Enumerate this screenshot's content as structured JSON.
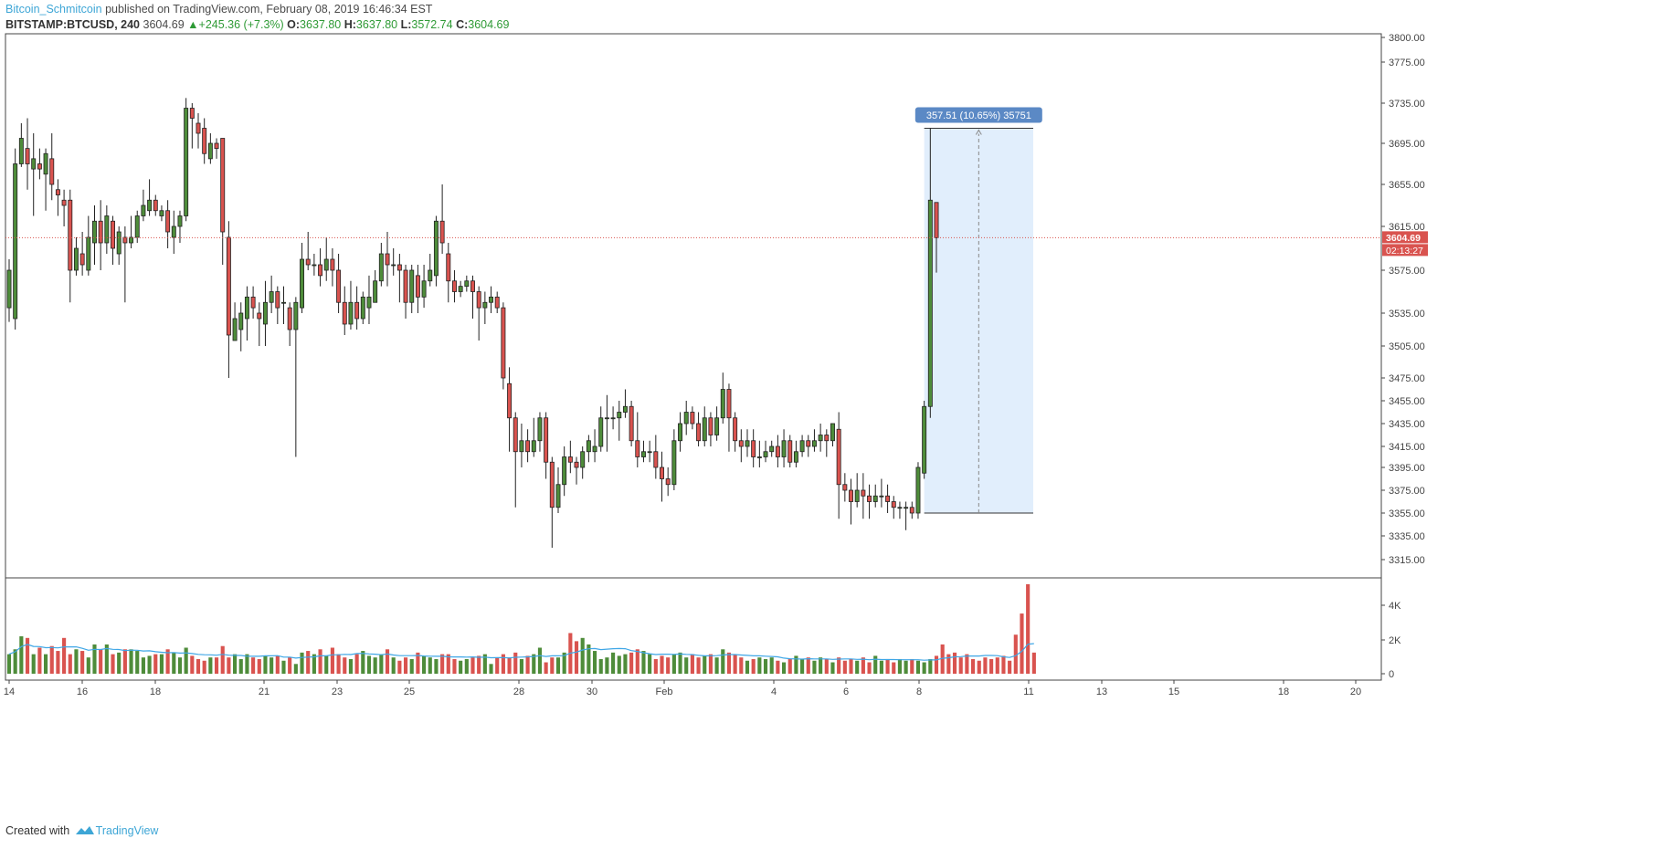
{
  "header": {
    "author": "Bitcoin_Schmitcoin",
    "published": " published on TradingView.com, February 08, 2019 16:46:34 EST",
    "symbol": "BITSTAMP:BTCUSD, 240",
    "last": "3604.69",
    "change": "+245.36 (+7.3%)",
    "o_label": "O:",
    "o_value": "3637.80",
    "h_label": "H:",
    "h_value": "3637.80",
    "l_label": "L:",
    "l_value": "3572.74",
    "c_label": "C:",
    "c_value": "3604.69"
  },
  "footer": {
    "created_with": "Created with",
    "brand": "TradingView"
  },
  "colors": {
    "up": "#4e8c3a",
    "down": "#d9534f",
    "price_line": "#d9534f",
    "measure_fill": "#dcebfb",
    "measure_label_bg": "#5b89c5",
    "volume_ma": "#3ea6e6"
  },
  "chart_data": {
    "type": "candlestick",
    "timeframe": "240",
    "price_axis": {
      "ticks": [
        "3800.00",
        "3775.00",
        "3735.00",
        "3695.00",
        "3655.00",
        "3615.00",
        "3575.00",
        "3535.00",
        "3505.00",
        "3475.00",
        "3455.00",
        "3435.00",
        "3415.00",
        "3395.00",
        "3375.00",
        "3355.00",
        "3335.00",
        "3315.00"
      ],
      "last_price_label": "3604.69",
      "countdown_label": "02:13:27"
    },
    "volume_axis": {
      "ticks": [
        "4K",
        "2K",
        "0"
      ]
    },
    "x_axis": {
      "ticks": [
        "14",
        "16",
        "18",
        "21",
        "23",
        "25",
        "28",
        "30",
        "Feb",
        "4",
        "6",
        "8",
        "11",
        "13",
        "15",
        "18",
        "20"
      ]
    },
    "measure": {
      "label": "357.51 (10.65%) 35751"
    },
    "candles_ohlc": [
      [
        3540,
        3575,
        3527,
        3585
      ],
      [
        3530,
        3675,
        3520,
        3690
      ],
      [
        3675,
        3700,
        3672,
        3715
      ],
      [
        3690,
        3675,
        3650,
        3720
      ],
      [
        3670,
        3680,
        3625,
        3705
      ],
      [
        3675,
        3670,
        3660,
        3690
      ],
      [
        3665,
        3685,
        3630,
        3690
      ],
      [
        3680,
        3655,
        3640,
        3705
      ],
      [
        3650,
        3645,
        3625,
        3660
      ],
      [
        3640,
        3635,
        3615,
        3650
      ],
      [
        3640,
        3575,
        3545,
        3650
      ],
      [
        3575,
        3595,
        3570,
        3605
      ],
      [
        3590,
        3580,
        3570,
        3610
      ],
      [
        3575,
        3605,
        3570,
        3625
      ],
      [
        3600,
        3620,
        3580,
        3635
      ],
      [
        3620,
        3600,
        3575,
        3640
      ],
      [
        3600,
        3625,
        3590,
        3635
      ],
      [
        3620,
        3595,
        3580,
        3625
      ],
      [
        3590,
        3610,
        3580,
        3615
      ],
      [
        3605,
        3600,
        3545,
        3615
      ],
      [
        3600,
        3605,
        3595,
        3625
      ],
      [
        3605,
        3625,
        3600,
        3630
      ],
      [
        3625,
        3635,
        3620,
        3650
      ],
      [
        3630,
        3640,
        3625,
        3660
      ],
      [
        3640,
        3630,
        3625,
        3645
      ],
      [
        3625,
        3630,
        3620,
        3635
      ],
      [
        3630,
        3610,
        3595,
        3640
      ],
      [
        3605,
        3615,
        3590,
        3630
      ],
      [
        3615,
        3625,
        3600,
        3630
      ],
      [
        3625,
        3730,
        3620,
        3740
      ],
      [
        3730,
        3720,
        3690,
        3735
      ],
      [
        3715,
        3705,
        3690,
        3725
      ],
      [
        3710,
        3685,
        3675,
        3720
      ],
      [
        3680,
        3695,
        3675,
        3705
      ],
      [
        3695,
        3690,
        3680,
        3700
      ],
      [
        3700,
        3610,
        3580,
        3695
      ],
      [
        3605,
        3515,
        3475,
        3620
      ],
      [
        3510,
        3530,
        3510,
        3545
      ],
      [
        3520,
        3535,
        3500,
        3545
      ],
      [
        3530,
        3550,
        3510,
        3560
      ],
      [
        3550,
        3540,
        3530,
        3560
      ],
      [
        3535,
        3530,
        3505,
        3545
      ],
      [
        3525,
        3545,
        3505,
        3565
      ],
      [
        3545,
        3555,
        3535,
        3570
      ],
      [
        3555,
        3540,
        3525,
        3560
      ],
      [
        3545,
        3545,
        3525,
        3560
      ],
      [
        3540,
        3520,
        3505,
        3545
      ],
      [
        3520,
        3545,
        3405,
        3550
      ],
      [
        3540,
        3585,
        3535,
        3600
      ],
      [
        3585,
        3580,
        3575,
        3610
      ],
      [
        3580,
        3580,
        3570,
        3590
      ],
      [
        3580,
        3570,
        3560,
        3595
      ],
      [
        3575,
        3585,
        3565,
        3605
      ],
      [
        3585,
        3575,
        3560,
        3595
      ],
      [
        3575,
        3545,
        3535,
        3590
      ],
      [
        3545,
        3525,
        3515,
        3560
      ],
      [
        3525,
        3545,
        3520,
        3565
      ],
      [
        3545,
        3530,
        3520,
        3560
      ],
      [
        3530,
        3550,
        3525,
        3555
      ],
      [
        3540,
        3550,
        3525,
        3570
      ],
      [
        3545,
        3565,
        3545,
        3575
      ],
      [
        3565,
        3590,
        3560,
        3600
      ],
      [
        3590,
        3580,
        3560,
        3610
      ],
      [
        3580,
        3580,
        3570,
        3595
      ],
      [
        3580,
        3575,
        3545,
        3590
      ],
      [
        3575,
        3545,
        3530,
        3580
      ],
      [
        3545,
        3575,
        3535,
        3580
      ],
      [
        3570,
        3550,
        3535,
        3580
      ],
      [
        3550,
        3565,
        3540,
        3580
      ],
      [
        3565,
        3575,
        3560,
        3590
      ],
      [
        3570,
        3620,
        3560,
        3625
      ],
      [
        3620,
        3600,
        3590,
        3655
      ],
      [
        3590,
        3565,
        3545,
        3600
      ],
      [
        3565,
        3555,
        3545,
        3575
      ],
      [
        3555,
        3560,
        3550,
        3565
      ],
      [
        3560,
        3565,
        3555,
        3570
      ],
      [
        3565,
        3555,
        3530,
        3570
      ],
      [
        3555,
        3540,
        3510,
        3560
      ],
      [
        3540,
        3545,
        3525,
        3555
      ],
      [
        3545,
        3550,
        3535,
        3560
      ],
      [
        3550,
        3540,
        3535,
        3555
      ],
      [
        3540,
        3475,
        3465,
        3545
      ],
      [
        3470,
        3440,
        3410,
        3485
      ],
      [
        3440,
        3410,
        3360,
        3445
      ],
      [
        3410,
        3420,
        3395,
        3435
      ],
      [
        3420,
        3410,
        3400,
        3430
      ],
      [
        3410,
        3420,
        3405,
        3440
      ],
      [
        3420,
        3440,
        3410,
        3445
      ],
      [
        3440,
        3400,
        3385,
        3445
      ],
      [
        3400,
        3360,
        3325,
        3405
      ],
      [
        3360,
        3380,
        3355,
        3395
      ],
      [
        3380,
        3405,
        3370,
        3415
      ],
      [
        3405,
        3400,
        3390,
        3420
      ],
      [
        3400,
        3395,
        3380,
        3405
      ],
      [
        3395,
        3410,
        3385,
        3415
      ],
      [
        3410,
        3420,
        3400,
        3425
      ],
      [
        3410,
        3415,
        3400,
        3430
      ],
      [
        3415,
        3440,
        3410,
        3450
      ],
      [
        3440,
        3440,
        3410,
        3460
      ],
      [
        3440,
        3440,
        3430,
        3450
      ],
      [
        3440,
        3445,
        3420,
        3455
      ],
      [
        3445,
        3450,
        3440,
        3465
      ],
      [
        3450,
        3420,
        3415,
        3455
      ],
      [
        3420,
        3405,
        3395,
        3445
      ],
      [
        3405,
        3410,
        3400,
        3420
      ],
      [
        3410,
        3410,
        3400,
        3420
      ],
      [
        3410,
        3395,
        3385,
        3425
      ],
      [
        3395,
        3385,
        3365,
        3410
      ],
      [
        3385,
        3380,
        3370,
        3395
      ],
      [
        3380,
        3420,
        3375,
        3430
      ],
      [
        3420,
        3435,
        3410,
        3445
      ],
      [
        3435,
        3445,
        3425,
        3455
      ],
      [
        3445,
        3435,
        3430,
        3450
      ],
      [
        3435,
        3420,
        3415,
        3445
      ],
      [
        3420,
        3440,
        3415,
        3450
      ],
      [
        3440,
        3425,
        3415,
        3445
      ],
      [
        3425,
        3440,
        3420,
        3450
      ],
      [
        3440,
        3465,
        3435,
        3480
      ],
      [
        3465,
        3440,
        3410,
        3470
      ],
      [
        3440,
        3420,
        3410,
        3445
      ],
      [
        3420,
        3415,
        3400,
        3430
      ],
      [
        3415,
        3420,
        3405,
        3430
      ],
      [
        3420,
        3405,
        3395,
        3430
      ],
      [
        3405,
        3405,
        3395,
        3420
      ],
      [
        3405,
        3410,
        3400,
        3420
      ],
      [
        3410,
        3415,
        3405,
        3420
      ],
      [
        3415,
        3405,
        3395,
        3425
      ],
      [
        3405,
        3420,
        3395,
        3430
      ],
      [
        3420,
        3400,
        3395,
        3425
      ],
      [
        3400,
        3410,
        3395,
        3420
      ],
      [
        3410,
        3420,
        3405,
        3425
      ],
      [
        3420,
        3415,
        3405,
        3425
      ],
      [
        3415,
        3420,
        3410,
        3430
      ],
      [
        3420,
        3425,
        3410,
        3435
      ],
      [
        3425,
        3420,
        3405,
        3430
      ],
      [
        3420,
        3435,
        3415,
        3435
      ],
      [
        3430,
        3380,
        3350,
        3445
      ],
      [
        3380,
        3375,
        3365,
        3390
      ],
      [
        3375,
        3365,
        3345,
        3385
      ],
      [
        3365,
        3375,
        3360,
        3390
      ],
      [
        3375,
        3370,
        3350,
        3390
      ],
      [
        3370,
        3365,
        3350,
        3380
      ],
      [
        3365,
        3370,
        3360,
        3380
      ],
      [
        3370,
        3370,
        3360,
        3385
      ],
      [
        3370,
        3365,
        3355,
        3380
      ],
      [
        3365,
        3360,
        3350,
        3370
      ],
      [
        3360,
        3360,
        3350,
        3365
      ],
      [
        3360,
        3360,
        3340,
        3365
      ],
      [
        3360,
        3355,
        3350,
        3365
      ],
      [
        3355,
        3395,
        3350,
        3400
      ],
      [
        3390,
        3450,
        3385,
        3455
      ],
      [
        3450,
        3640,
        3440,
        3710
      ],
      [
        3637.8,
        3604.69,
        3572.74,
        3637.8
      ]
    ],
    "volume": [
      1.2,
      1.5,
      2.3,
      2.2,
      1.2,
      1.6,
      1.2,
      1.7,
      1.4,
      2.2,
      1.2,
      1.5,
      1.4,
      1.0,
      1.8,
      1.5,
      1.8,
      1.2,
      1.3,
      1.5,
      1.5,
      1.4,
      1.0,
      1.1,
      1.2,
      1.2,
      1.5,
      1.3,
      1.0,
      1.6,
      1.1,
      0.9,
      0.8,
      1.0,
      1.0,
      1.7,
      1.0,
      1.2,
      0.9,
      1.2,
      1.0,
      0.9,
      1.1,
      1.0,
      1.1,
      0.8,
      1.0,
      0.6,
      1.3,
      1.4,
      1.2,
      1.5,
      1.1,
      1.6,
      1.2,
      1.0,
      0.9,
      1.2,
      1.4,
      1.1,
      1.0,
      1.2,
      1.5,
      1.0,
      0.8,
      1.0,
      0.9,
      1.3,
      1.1,
      1.0,
      0.9,
      1.2,
      1.2,
      0.9,
      0.8,
      0.9,
      1.0,
      1.1,
      1.2,
      0.6,
      1.0,
      1.2,
      1.0,
      1.3,
      0.9,
      1.1,
      1.2,
      1.6,
      0.7,
      1.0,
      1.0,
      1.3,
      2.5,
      2.0,
      2.2,
      1.8,
      1.4,
      0.9,
      1.0,
      1.3,
      1.1,
      1.2,
      1.3,
      1.5,
      1.4,
      1.2,
      0.9,
      1.1,
      1.0,
      1.2,
      1.3,
      1.0,
      1.2,
      1.0,
      1.1,
      1.2,
      1.0,
      1.5,
      1.3,
      1.2,
      1.0,
      0.8,
      0.9,
      1.0,
      0.9,
      1.0,
      0.8,
      0.7,
      0.9,
      1.1,
      0.9,
      1.0,
      0.8,
      1.0,
      0.9,
      0.7,
      1.0,
      0.8,
      0.9,
      0.8,
      1.0,
      0.7,
      1.1,
      0.8,
      0.9,
      0.7,
      0.9,
      0.8,
      0.9,
      0.8,
      0.7,
      0.9,
      1.1,
      1.8,
      1.2,
      1.3,
      1.0,
      1.2,
      0.9,
      0.8,
      1.0,
      0.9,
      1.0,
      1.1,
      0.8,
      2.4,
      3.7,
      5.5,
      1.3
    ]
  }
}
